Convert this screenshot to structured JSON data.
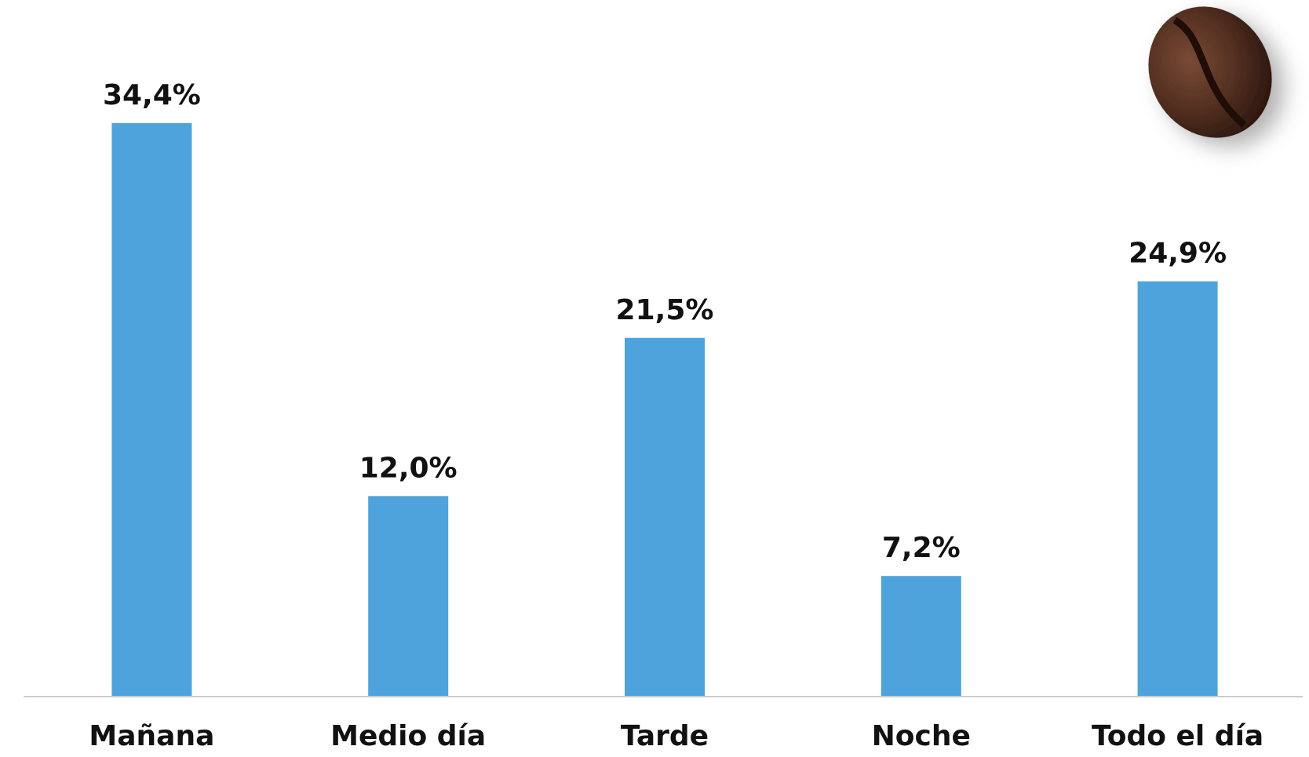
{
  "chart_data": {
    "type": "bar",
    "categories": [
      "Mañana",
      "Medio día",
      "Tarde",
      "Noche",
      "Todo el día"
    ],
    "values": [
      34.4,
      12.0,
      21.5,
      7.2,
      24.9
    ],
    "value_labels": [
      "34,4%",
      "12,0%",
      "21,5%",
      "7,2%",
      "24,9%"
    ],
    "color": "#4fa3dc"
  }
}
